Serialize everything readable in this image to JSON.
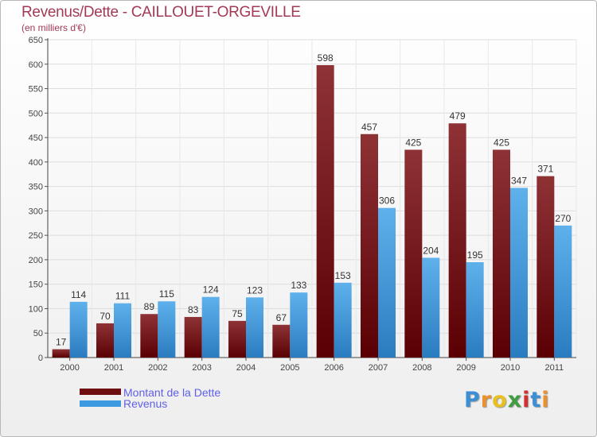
{
  "title": "Revenus/Dette - CAILLOUET-ORGEVILLE",
  "unit": "(en milliers d'€)",
  "logo": {
    "text": "Proxiti",
    "letters": [
      "P",
      "r",
      "o",
      "x",
      "i",
      "t",
      "i"
    ],
    "colors": [
      "#3c8ed6",
      "#e8912d",
      "#e8c020",
      "#3f9c3f",
      "#d03030",
      "#3c8ed6",
      "#e8912d"
    ]
  },
  "legend": [
    {
      "label": "Montant de la Dette",
      "color": "#6e0e10"
    },
    {
      "label": "Revenus",
      "color": "#3e9ae0"
    }
  ],
  "chart_data": {
    "type": "bar",
    "title": "Revenus/Dette - CAILLOUET-ORGEVILLE",
    "ylabel": "(en milliers d'€)",
    "xlabel": "",
    "categories": [
      "2000",
      "2001",
      "2002",
      "2003",
      "2004",
      "2005",
      "2006",
      "2007",
      "2008",
      "2009",
      "2010",
      "2011"
    ],
    "series": [
      {
        "name": "Montant de la Dette",
        "color": "#6e0e10",
        "values": [
          17,
          70,
          89,
          83,
          75,
          67,
          598,
          457,
          425,
          479,
          425,
          371
        ]
      },
      {
        "name": "Revenus",
        "color": "#3e9ae0",
        "values": [
          114,
          111,
          115,
          124,
          123,
          133,
          153,
          306,
          204,
          195,
          347,
          270
        ]
      }
    ],
    "ylim": [
      0,
      650
    ],
    "yticks": [
      0,
      50,
      100,
      150,
      200,
      250,
      300,
      350,
      400,
      450,
      500,
      550,
      600,
      650
    ],
    "grid": true,
    "legend_position": "bottom-left"
  }
}
